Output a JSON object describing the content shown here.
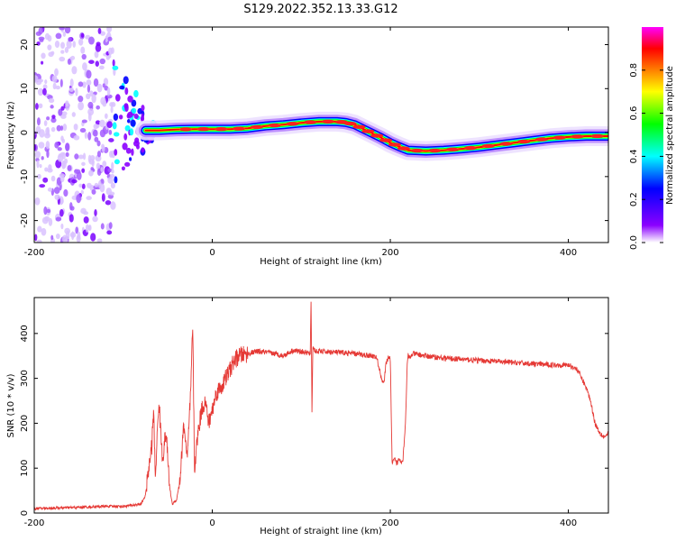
{
  "figure": {
    "title": "S129.2022.352.13.33.G12"
  },
  "chart_data": [
    {
      "type": "heatmap",
      "xlabel": "Height of straight line (km)",
      "ylabel": "Frequency (Hz)",
      "xlim": [
        -200,
        445
      ],
      "ylim": [
        -25,
        24
      ],
      "x_ticks": [
        -200,
        0,
        200,
        400
      ],
      "y_ticks": [
        -20,
        -10,
        0,
        10,
        20
      ],
      "colorbar": {
        "label": "Normalized spectral amplitude",
        "range": [
          0,
          1
        ],
        "ticks": [
          0.0,
          0.2,
          0.4,
          0.6,
          0.8
        ],
        "colormap": [
          "#ffffff",
          "#8b00ff",
          "#0000ff",
          "#00ffff",
          "#00ff00",
          "#ffff00",
          "#ff8000",
          "#ff0000",
          "#ff00ff"
        ]
      },
      "ridge": {
        "x": [
          -75,
          -60,
          -40,
          -20,
          0,
          20,
          40,
          60,
          80,
          100,
          120,
          140,
          150,
          160,
          170,
          180,
          190,
          200,
          210,
          220,
          240,
          260,
          280,
          300,
          320,
          340,
          360,
          380,
          400,
          420,
          445
        ],
        "y": [
          0.5,
          0.5,
          0.7,
          0.8,
          0.8,
          0.8,
          1.0,
          1.5,
          1.8,
          2.2,
          2.5,
          2.5,
          2.3,
          1.8,
          0.8,
          -0.2,
          -1.2,
          -2.3,
          -3.2,
          -4.0,
          -4.2,
          -4.0,
          -3.7,
          -3.3,
          -2.8,
          -2.3,
          -1.8,
          -1.3,
          -1.0,
          -0.8,
          -0.8
        ]
      },
      "noise_region_x": [
        -200,
        -110
      ],
      "transition_region_x": [
        -110,
        -65
      ]
    },
    {
      "type": "line",
      "xlabel": "Height of straight line (km)",
      "ylabel": "SNR (10 * v/v)",
      "xlim": [
        -200,
        445
      ],
      "ylim": [
        0,
        480
      ],
      "x_ticks": [
        -200,
        0,
        200,
        400
      ],
      "y_ticks": [
        0,
        100,
        200,
        300,
        400
      ],
      "series": [
        {
          "color": "#e53935",
          "x": [
            -200,
            -160,
            -120,
            -100,
            -80,
            -75,
            -68,
            -66,
            -64,
            -60,
            -56,
            -52,
            -48,
            -45,
            -40,
            -36,
            -32,
            -28,
            -24,
            -22,
            -20,
            -16,
            -12,
            -8,
            -4,
            0,
            5,
            10,
            15,
            20,
            25,
            30,
            40,
            50,
            60,
            70,
            80,
            90,
            100,
            110,
            111,
            112,
            113,
            116,
            120,
            140,
            160,
            180,
            185,
            190,
            193,
            195,
            198,
            200,
            202,
            205,
            207,
            210,
            214,
            217,
            219,
            220,
            222,
            225,
            240,
            260,
            300,
            340,
            380,
            400,
            410,
            415,
            420,
            425,
            430,
            435,
            440,
            445
          ],
          "y": [
            10,
            12,
            15,
            15,
            20,
            40,
            150,
            230,
            80,
            250,
            120,
            180,
            60,
            20,
            30,
            80,
            200,
            120,
            280,
            420,
            100,
            180,
            230,
            250,
            200,
            230,
            270,
            280,
            300,
            320,
            340,
            350,
            355,
            360,
            358,
            355,
            350,
            362,
            360,
            355,
            470,
            230,
            370,
            360,
            360,
            358,
            355,
            350,
            345,
            300,
            290,
            330,
            350,
            340,
            110,
            120,
            110,
            120,
            115,
            200,
            330,
            350,
            345,
            355,
            350,
            345,
            340,
            335,
            330,
            330,
            320,
            300,
            280,
            250,
            200,
            180,
            170,
            175
          ]
        }
      ]
    }
  ]
}
